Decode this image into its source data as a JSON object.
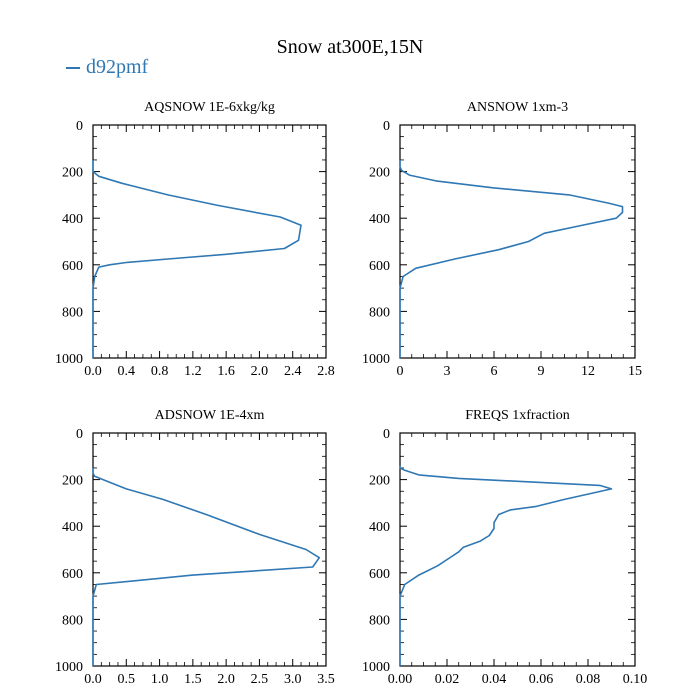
{
  "figure": {
    "title": "Snow at300E,15N",
    "legend_label": "d92pmf",
    "line_color": "#2f78b4"
  },
  "chart_data": [
    {
      "type": "line",
      "title": "AQSNOW  1E-6xkg/kg",
      "xlim": [
        0.0,
        2.8
      ],
      "ylim": [
        1000,
        0
      ],
      "xticks": [
        0.0,
        0.4,
        0.8,
        1.2,
        1.6,
        2.0,
        2.4,
        2.8
      ],
      "xtick_labels": [
        "0.0",
        "0.4",
        "0.8",
        "1.2",
        "1.6",
        "2.0",
        "2.4",
        "2.8"
      ],
      "yticks": [
        0,
        200,
        400,
        600,
        800,
        1000
      ],
      "ytick_labels": [
        "0",
        "200",
        "400",
        "600",
        "800",
        "1000"
      ],
      "series": [
        {
          "name": "d92pmf",
          "x": [
            0,
            0,
            0.02,
            0.07,
            0.2,
            0.4,
            0.9,
            1.6,
            2.3,
            2.47,
            2.5,
            2.25,
            1.5,
            0.9,
            0.35,
            0.07,
            0,
            0
          ],
          "y": [
            1000,
            700,
            650,
            610,
            600,
            590,
            575,
            555,
            530,
            495,
            430,
            395,
            345,
            300,
            250,
            220,
            200,
            150
          ]
        }
      ]
    },
    {
      "type": "line",
      "title": "ANSNOW  1xm-3",
      "xlim": [
        0,
        15
      ],
      "ylim": [
        1000,
        0
      ],
      "xticks": [
        0,
        3,
        6,
        9,
        12,
        15
      ],
      "xtick_labels": [
        "0",
        "3",
        "6",
        "9",
        "12",
        "15"
      ],
      "yticks": [
        0,
        200,
        400,
        600,
        800,
        1000
      ],
      "ytick_labels": [
        "0",
        "200",
        "400",
        "600",
        "800",
        "1000"
      ],
      "series": [
        {
          "name": "d92pmf",
          "x": [
            0,
            0,
            0.2,
            1,
            3.5,
            6.3,
            8.2,
            9.2,
            11.3,
            13.8,
            14.2,
            14.2,
            13.3,
            10.8,
            6,
            2.3,
            0.6,
            0.1,
            0,
            0
          ],
          "y": [
            1000,
            700,
            650,
            615,
            575,
            535,
            500,
            465,
            435,
            400,
            375,
            350,
            335,
            300,
            270,
            240,
            215,
            195,
            180,
            150
          ]
        }
      ]
    },
    {
      "type": "line",
      "title": "ADSNOW  1E-4xm",
      "xlim": [
        0.0,
        3.5
      ],
      "ylim": [
        1000,
        0
      ],
      "xticks": [
        0.0,
        0.5,
        1.0,
        1.5,
        2.0,
        2.5,
        3.0,
        3.5
      ],
      "xtick_labels": [
        "0.0",
        "0.5",
        "1.0",
        "1.5",
        "2.0",
        "2.5",
        "3.0",
        "3.5"
      ],
      "yticks": [
        0,
        200,
        400,
        600,
        800,
        1000
      ],
      "ytick_labels": [
        "0",
        "200",
        "400",
        "600",
        "800",
        "1000"
      ],
      "series": [
        {
          "name": "d92pmf",
          "x": [
            0,
            0,
            0.05,
            1.5,
            3.3,
            3.4,
            3.2,
            2.5,
            1.7,
            1.05,
            0.5,
            0.15,
            0.02,
            0,
            0
          ],
          "y": [
            1000,
            700,
            650,
            610,
            575,
            535,
            500,
            435,
            350,
            285,
            240,
            200,
            185,
            170,
            150
          ]
        }
      ]
    },
    {
      "type": "line",
      "title": "FREQS  1xfraction",
      "xlim": [
        0.0,
        0.1
      ],
      "ylim": [
        1000,
        0
      ],
      "xticks": [
        0.0,
        0.02,
        0.04,
        0.06,
        0.08,
        0.1
      ],
      "xtick_labels": [
        "0.00",
        "0.02",
        "0.04",
        "0.06",
        "0.08",
        "0.10"
      ],
      "yticks": [
        0,
        200,
        400,
        600,
        800,
        1000
      ],
      "ytick_labels": [
        "0",
        "200",
        "400",
        "600",
        "800",
        "1000"
      ],
      "series": [
        {
          "name": "d92pmf",
          "x": [
            0,
            0,
            0.002,
            0.008,
            0.016,
            0.022,
            0.025,
            0.027,
            0.034,
            0.038,
            0.04,
            0.04,
            0.042,
            0.047,
            0.058,
            0.07,
            0.09,
            0.085,
            0.025,
            0.008,
            0.002,
            0,
            0
          ],
          "y": [
            1000,
            700,
            650,
            610,
            570,
            530,
            510,
            490,
            465,
            440,
            410,
            385,
            350,
            330,
            315,
            285,
            240,
            225,
            195,
            180,
            160,
            150,
            140
          ]
        }
      ]
    }
  ]
}
